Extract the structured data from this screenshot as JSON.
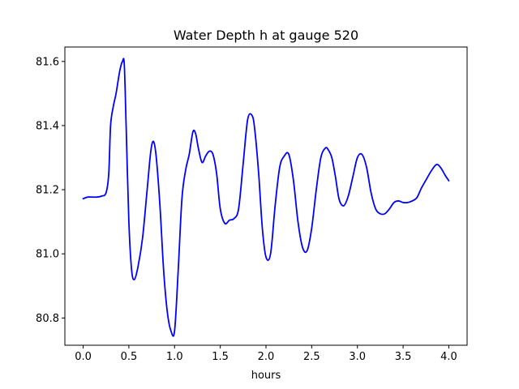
{
  "chart_data": {
    "type": "line",
    "title": "Water Depth h at gauge 520",
    "xlabel": "hours",
    "ylabel": "",
    "xlim": [
      -0.2,
      4.2
    ],
    "ylim": [
      80.715,
      81.645
    ],
    "x_ticks": [
      {
        "value": 0.0,
        "label": "0.0"
      },
      {
        "value": 0.5,
        "label": "0.5"
      },
      {
        "value": 1.0,
        "label": "1.0"
      },
      {
        "value": 1.5,
        "label": "1.5"
      },
      {
        "value": 2.0,
        "label": "2.0"
      },
      {
        "value": 2.5,
        "label": "2.5"
      },
      {
        "value": 3.0,
        "label": "3.0"
      },
      {
        "value": 3.5,
        "label": "3.5"
      },
      {
        "value": 4.0,
        "label": "4.0"
      }
    ],
    "y_ticks": [
      {
        "value": 80.8,
        "label": "80.8"
      },
      {
        "value": 81.0,
        "label": "81.0"
      },
      {
        "value": 81.2,
        "label": "81.2"
      },
      {
        "value": 81.4,
        "label": "81.4"
      },
      {
        "value": 81.6,
        "label": "81.6"
      }
    ],
    "grid": false,
    "legend": "none",
    "series": [
      {
        "color": "#0000ff",
        "x": [
          0.0,
          0.05,
          0.1,
          0.15,
          0.2,
          0.25,
          0.28,
          0.3,
          0.33,
          0.36,
          0.4,
          0.43,
          0.45,
          0.47,
          0.5,
          0.53,
          0.56,
          0.6,
          0.65,
          0.7,
          0.74,
          0.77,
          0.8,
          0.84,
          0.88,
          0.92,
          0.96,
          1.0,
          1.04,
          1.08,
          1.12,
          1.16,
          1.2,
          1.23,
          1.26,
          1.3,
          1.34,
          1.38,
          1.42,
          1.46,
          1.5,
          1.55,
          1.6,
          1.65,
          1.7,
          1.75,
          1.8,
          1.85,
          1.88,
          1.92,
          1.96,
          2.0,
          2.05,
          2.1,
          2.15,
          2.2,
          2.25,
          2.3,
          2.35,
          2.4,
          2.45,
          2.5,
          2.55,
          2.6,
          2.65,
          2.68,
          2.72,
          2.76,
          2.8,
          2.85,
          2.9,
          2.95,
          3.0,
          3.05,
          3.1,
          3.15,
          3.2,
          3.25,
          3.3,
          3.35,
          3.4,
          3.45,
          3.5,
          3.55,
          3.6,
          3.65,
          3.7,
          3.75,
          3.8,
          3.85,
          3.88,
          3.92,
          3.96,
          4.0
        ],
        "y": [
          81.172,
          81.177,
          81.177,
          81.177,
          81.18,
          81.19,
          81.25,
          81.4,
          81.46,
          81.5,
          81.57,
          81.6,
          81.59,
          81.4,
          81.1,
          80.95,
          80.92,
          80.96,
          81.05,
          81.2,
          81.32,
          81.35,
          81.3,
          81.15,
          80.95,
          80.82,
          80.76,
          80.76,
          80.95,
          81.17,
          81.26,
          81.31,
          81.38,
          81.375,
          81.33,
          81.285,
          81.305,
          81.32,
          81.31,
          81.25,
          81.14,
          81.095,
          81.105,
          81.11,
          81.14,
          81.28,
          81.42,
          81.43,
          81.38,
          81.25,
          81.08,
          80.99,
          81.0,
          81.15,
          81.27,
          81.305,
          81.31,
          81.23,
          81.1,
          81.02,
          81.01,
          81.08,
          81.2,
          81.3,
          81.33,
          81.325,
          81.3,
          81.24,
          81.17,
          81.15,
          81.18,
          81.24,
          81.3,
          81.31,
          81.27,
          81.19,
          81.14,
          81.125,
          81.125,
          81.14,
          81.16,
          81.165,
          81.16,
          81.16,
          81.165,
          81.175,
          81.205,
          81.23,
          81.255,
          81.275,
          81.278,
          81.265,
          81.245,
          81.228
        ]
      }
    ]
  }
}
